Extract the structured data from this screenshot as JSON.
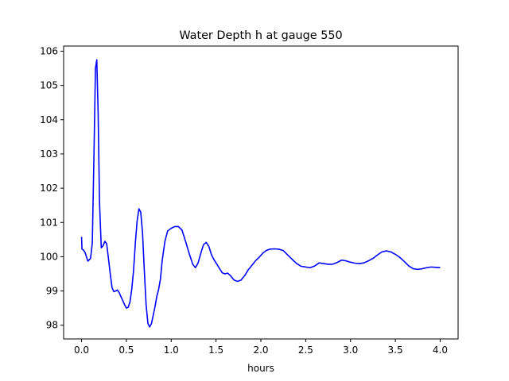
{
  "chart_data": {
    "type": "line",
    "title": "Water Depth h at gauge 550",
    "xlabel": "hours",
    "ylabel": "",
    "xlim": [
      -0.2,
      4.2
    ],
    "ylim": [
      97.6,
      106.15
    ],
    "xticks": [
      0.0,
      0.5,
      1.0,
      1.5,
      2.0,
      2.5,
      3.0,
      3.5,
      4.0
    ],
    "xtick_labels": [
      "0.0",
      "0.5",
      "1.0",
      "1.5",
      "2.0",
      "2.5",
      "3.0",
      "3.5",
      "4.0"
    ],
    "yticks": [
      98,
      99,
      100,
      101,
      102,
      103,
      104,
      105,
      106
    ],
    "ytick_labels": [
      "98",
      "99",
      "100",
      "101",
      "102",
      "103",
      "104",
      "105",
      "106"
    ],
    "grid": false,
    "series": [
      {
        "name": "",
        "color": "#0000ff",
        "x": [
          0.0,
          0.005,
          0.02,
          0.04,
          0.07,
          0.1,
          0.12,
          0.14,
          0.155,
          0.17,
          0.185,
          0.2,
          0.22,
          0.24,
          0.26,
          0.28,
          0.3,
          0.32,
          0.34,
          0.36,
          0.38,
          0.4,
          0.42,
          0.44,
          0.46,
          0.48,
          0.5,
          0.52,
          0.54,
          0.56,
          0.58,
          0.6,
          0.62,
          0.64,
          0.66,
          0.68,
          0.7,
          0.72,
          0.74,
          0.76,
          0.78,
          0.8,
          0.82,
          0.84,
          0.86,
          0.88,
          0.9,
          0.93,
          0.96,
          1.0,
          1.04,
          1.08,
          1.12,
          1.16,
          1.2,
          1.24,
          1.27,
          1.3,
          1.33,
          1.36,
          1.39,
          1.42,
          1.45,
          1.48,
          1.51,
          1.54,
          1.57,
          1.6,
          1.63,
          1.66,
          1.7,
          1.74,
          1.78,
          1.82,
          1.86,
          1.9,
          1.94,
          1.98,
          2.02,
          2.06,
          2.1,
          2.15,
          2.2,
          2.25,
          2.3,
          2.35,
          2.4,
          2.45,
          2.5,
          2.55,
          2.6,
          2.65,
          2.7,
          2.75,
          2.8,
          2.85,
          2.9,
          2.95,
          3.0,
          3.05,
          3.1,
          3.15,
          3.2,
          3.25,
          3.3,
          3.35,
          3.4,
          3.45,
          3.5,
          3.55,
          3.6,
          3.65,
          3.7,
          3.75,
          3.8,
          3.85,
          3.9,
          3.95,
          4.0
        ],
        "y": [
          100.58,
          100.22,
          100.2,
          100.12,
          99.87,
          99.95,
          100.4,
          103.2,
          105.5,
          105.75,
          104.2,
          101.6,
          100.26,
          100.32,
          100.45,
          100.38,
          99.95,
          99.5,
          99.1,
          98.98,
          99.0,
          99.03,
          98.95,
          98.83,
          98.72,
          98.6,
          98.5,
          98.52,
          98.68,
          99.05,
          99.6,
          100.4,
          101.05,
          101.4,
          101.3,
          100.7,
          99.6,
          98.6,
          98.05,
          97.95,
          98.05,
          98.3,
          98.55,
          98.85,
          99.05,
          99.35,
          99.9,
          100.45,
          100.75,
          100.83,
          100.88,
          100.88,
          100.78,
          100.45,
          100.1,
          99.78,
          99.68,
          99.82,
          100.1,
          100.35,
          100.42,
          100.3,
          100.05,
          99.9,
          99.78,
          99.65,
          99.53,
          99.5,
          99.52,
          99.45,
          99.32,
          99.28,
          99.32,
          99.45,
          99.62,
          99.75,
          99.88,
          99.98,
          100.1,
          100.18,
          100.22,
          100.23,
          100.22,
          100.18,
          100.05,
          99.92,
          99.8,
          99.72,
          99.7,
          99.68,
          99.73,
          99.82,
          99.8,
          99.78,
          99.78,
          99.83,
          99.9,
          99.88,
          99.84,
          99.81,
          99.8,
          99.82,
          99.88,
          99.95,
          100.05,
          100.14,
          100.17,
          100.14,
          100.07,
          99.98,
          99.86,
          99.73,
          99.65,
          99.63,
          99.65,
          99.68,
          99.7,
          99.69,
          99.68
        ]
      }
    ]
  }
}
